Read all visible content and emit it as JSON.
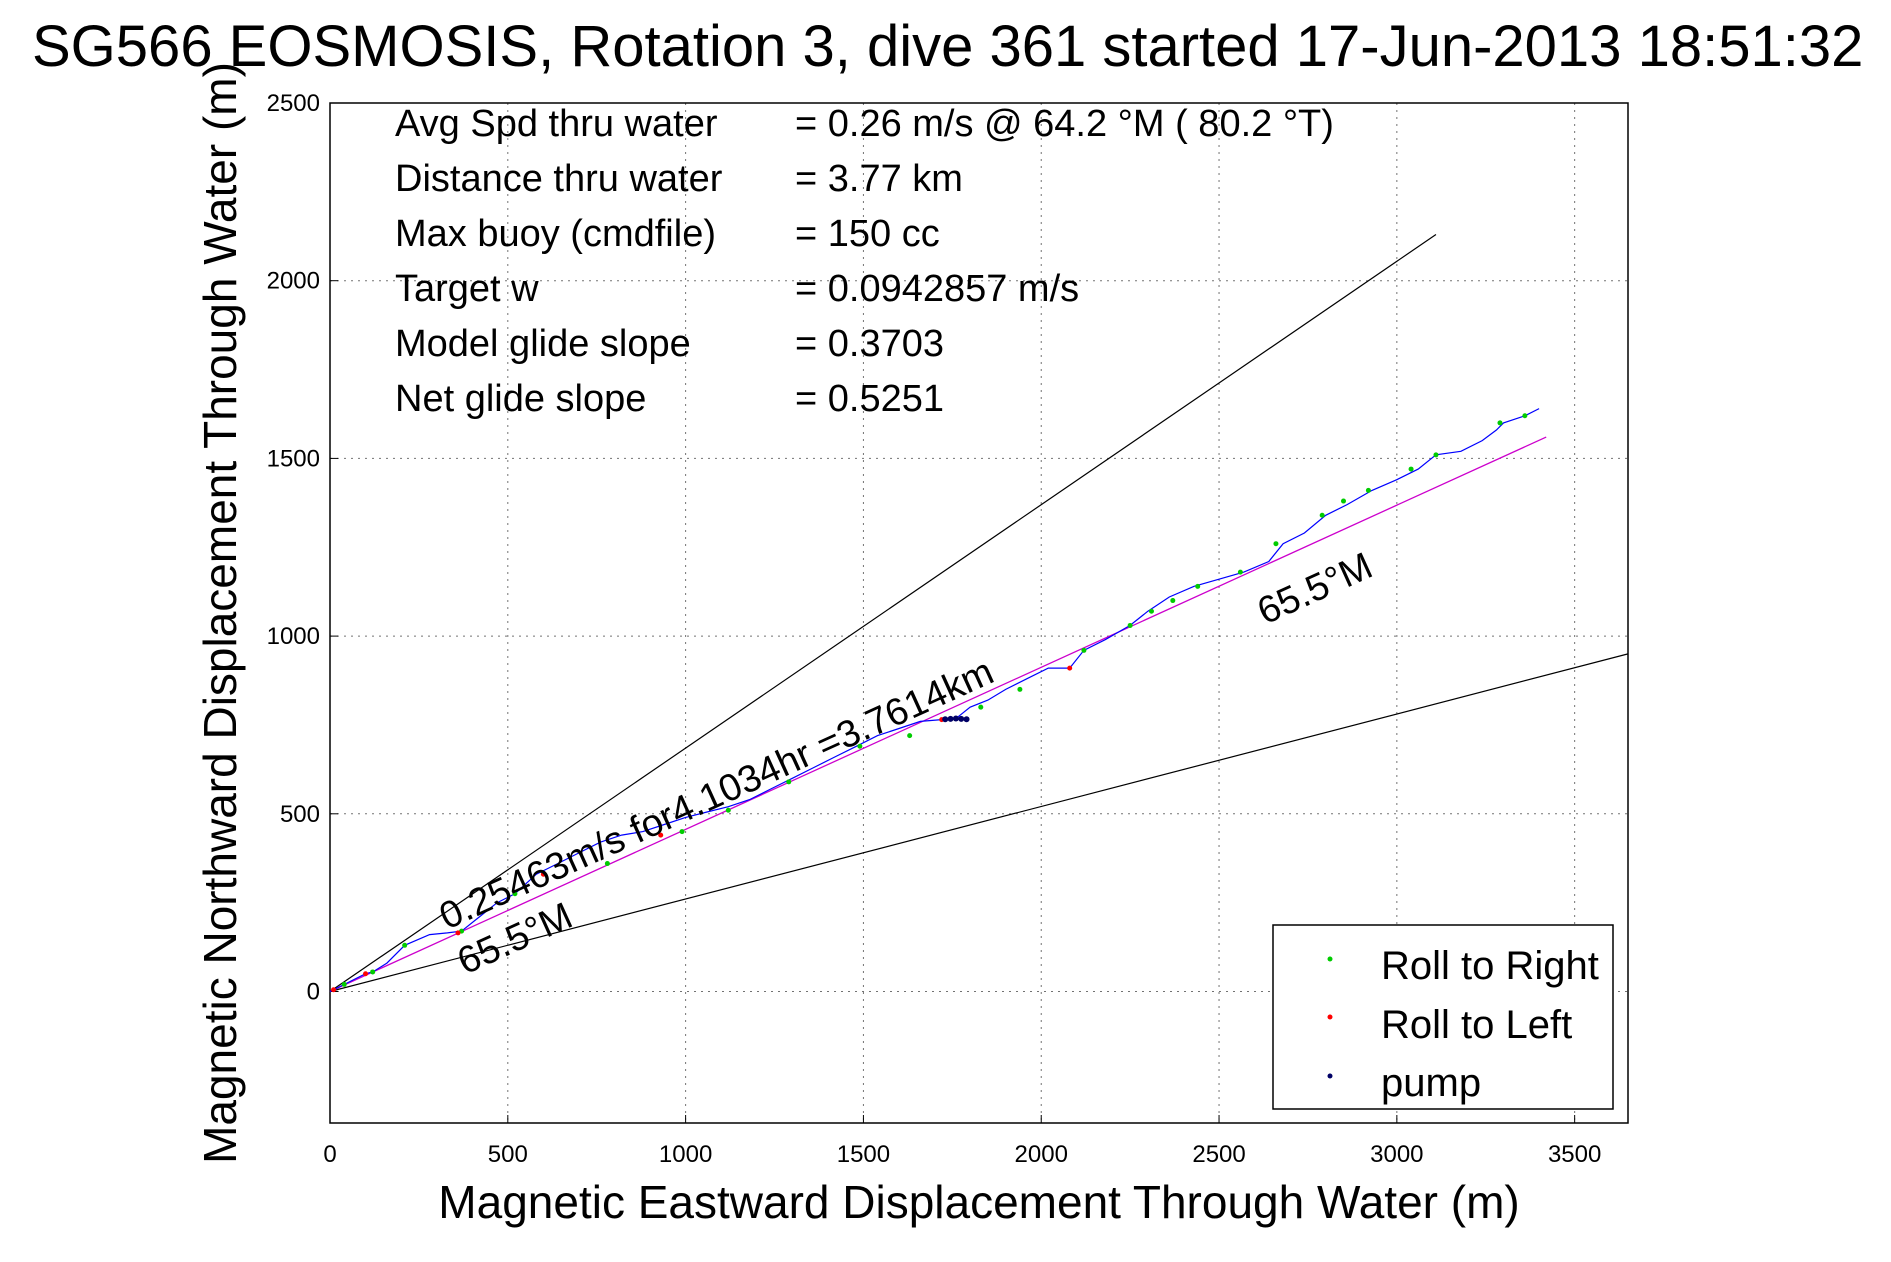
{
  "chart_data": {
    "type": "line",
    "title": "SG566 EOSMOSIS, Rotation 3, dive 361 started 17-Jun-2013 18:51:32",
    "xlabel": "Magnetic Eastward Displacement Through Water (m)",
    "ylabel": "Magnetic Northward Displacement Through Water (m)",
    "xlim": [
      0,
      3650
    ],
    "ylim": [
      -370,
      2500
    ],
    "xticks": [
      0,
      500,
      1000,
      1500,
      2000,
      2500,
      3000,
      3500
    ],
    "yticks": [
      0,
      500,
      1000,
      1500,
      2000,
      2500
    ],
    "grid": true,
    "legend_position": "bottom-right",
    "stats": [
      {
        "label": "Avg Spd thru water",
        "value": "=  0.26 m/s @  64.2 °M ( 80.2 °T)"
      },
      {
        "label": "Distance thru water",
        "value": "=  3.77 km"
      },
      {
        "label": "Max buoy (cmdfile)",
        "value": "= 150 cc"
      },
      {
        "label": "Target w",
        "value": "= 0.0942857 m/s"
      },
      {
        "label": "Model glide slope",
        "value": "= 0.3703"
      },
      {
        "label": "Net glide slope",
        "value": "= 0.5251"
      }
    ],
    "annotations": {
      "track_label": "0.25463m/s for4.1034hr =3.7614km",
      "heading_upper": "65.5°M",
      "heading_lower": "65.5°M"
    },
    "envelope_lines": [
      {
        "x": [
          0,
          3110
        ],
        "y": [
          0,
          2130
        ]
      },
      {
        "x": [
          0,
          3650
        ],
        "y": [
          0,
          950
        ]
      }
    ],
    "heading_line": {
      "x": [
        0,
        3420
      ],
      "y": [
        0,
        1560
      ]
    },
    "series": [
      {
        "name": "track",
        "color": "#0000ff",
        "x": [
          0,
          50,
          100,
          120,
          160,
          210,
          280,
          330,
          370,
          420,
          470,
          520,
          580,
          640,
          700,
          760,
          820,
          880,
          940,
          1000,
          1060,
          1120,
          1180,
          1240,
          1300,
          1360,
          1420,
          1480,
          1540,
          1600,
          1660,
          1720,
          1760,
          1800,
          1850,
          1900,
          1960,
          2020,
          2080,
          2120,
          2180,
          2250,
          2300,
          2360,
          2430,
          2500,
          2570,
          2640,
          2680,
          2740,
          2800,
          2860,
          2930,
          3000,
          3060,
          3110,
          3180,
          3240,
          3280,
          3300,
          3360,
          3400
        ],
        "y": [
          0,
          25,
          50,
          55,
          80,
          130,
          160,
          165,
          170,
          210,
          250,
          275,
          330,
          360,
          390,
          420,
          440,
          450,
          470,
          490,
          505,
          520,
          540,
          570,
          600,
          630,
          660,
          690,
          720,
          740,
          760,
          765,
          768,
          800,
          820,
          850,
          880,
          910,
          910,
          960,
          990,
          1030,
          1070,
          1110,
          1140,
          1160,
          1180,
          1210,
          1260,
          1290,
          1340,
          1370,
          1410,
          1440,
          1470,
          1510,
          1520,
          1550,
          1580,
          1600,
          1620,
          1640
        ]
      },
      {
        "name": "Roll to Right",
        "color": "#00cc00",
        "x": [
          40,
          120,
          210,
          370,
          520,
          780,
          990,
          1120,
          1290,
          1490,
          1630,
          1830,
          1940,
          2120,
          2250,
          2310,
          2370,
          2440,
          2560,
          2660,
          2790,
          2850,
          2920,
          3040,
          3110,
          3290,
          3360
        ],
        "y": [
          20,
          55,
          130,
          170,
          275,
          360,
          450,
          510,
          590,
          690,
          720,
          800,
          850,
          960,
          1030,
          1070,
          1100,
          1140,
          1180,
          1260,
          1340,
          1380,
          1410,
          1470,
          1510,
          1600,
          1620
        ]
      },
      {
        "name": "Roll to Left",
        "color": "#ff0000",
        "x": [
          10,
          100,
          360,
          600,
          930,
          1720,
          2080
        ],
        "y": [
          5,
          50,
          165,
          330,
          440,
          765,
          910
        ]
      },
      {
        "name": "pump",
        "color": "#000066",
        "x": [
          1730,
          1745,
          1760,
          1775,
          1790
        ],
        "y": [
          766,
          767,
          768,
          767,
          766
        ]
      }
    ]
  }
}
